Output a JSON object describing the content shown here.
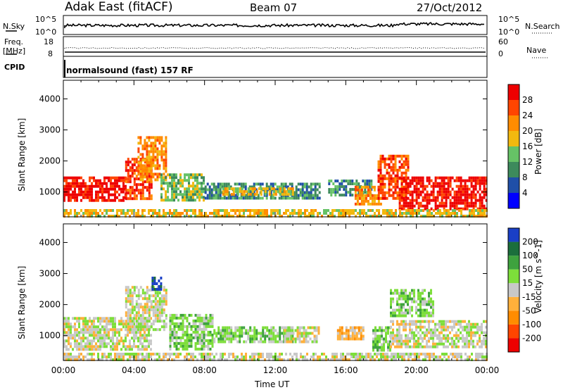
{
  "header": {
    "radar": "Adak East (fitACF)",
    "beam": "Beam 07",
    "date": "27/Oct/2012"
  },
  "nsky_panel": {
    "left_label": "N.Sky",
    "left_ticks": [
      "10^5",
      "10^0"
    ],
    "right_label": "N.Search",
    "right_ticks": [
      "10^5",
      "10^0"
    ]
  },
  "freq_panel": {
    "left_label_1": "Freq.",
    "left_label_2": "[MHz]",
    "left_ticks": [
      "18",
      "8"
    ],
    "right_label": "Nave",
    "right_ticks": [
      "60",
      "0"
    ]
  },
  "cpid": {
    "label": "CPID",
    "text": "normalsound (fast) 157 RF"
  },
  "colors": {
    "power": [
      "#0000ff",
      "#1f4fa8",
      "#3d8a5c",
      "#66c266",
      "#f2b90f",
      "#ff8c00",
      "#ff4500",
      "#ee0000"
    ],
    "velocity": [
      "#ee0000",
      "#ff4500",
      "#ff8c00",
      "#ffb03b",
      "#c8c8c8",
      "#7dde3a",
      "#3ea23e",
      "#1b6e3c",
      "#1a3fc6"
    ],
    "ground": "#c8c8c8"
  },
  "chart_data": [
    {
      "type": "heatmap",
      "name": "power",
      "xlabel": "",
      "ylabel": "Slant Range [km]",
      "xlim": [
        0,
        24
      ],
      "ylim": [
        200,
        4600
      ],
      "yticks": [
        "1000",
        "2000",
        "3000",
        "4000"
      ],
      "colorbar_label": "Power [dB]",
      "colorbar_ticks": [
        "4",
        "8",
        "12",
        "16",
        "20",
        "24",
        "28"
      ],
      "regions": [
        {
          "t0": 0.0,
          "t1": 3.5,
          "r0": 700,
          "r1": 1500,
          "level": 7
        },
        {
          "t0": 3.5,
          "t1": 5.0,
          "r0": 800,
          "r1": 2100,
          "level": 6
        },
        {
          "t0": 4.2,
          "t1": 5.8,
          "r0": 1400,
          "r1": 2800,
          "level": 5
        },
        {
          "t0": 5.5,
          "t1": 8.0,
          "r0": 700,
          "r1": 1600,
          "level": 3
        },
        {
          "t0": 8.0,
          "t1": 14.5,
          "r0": 800,
          "r1": 1300,
          "level": 2
        },
        {
          "t0": 9.0,
          "t1": 13.0,
          "r0": 900,
          "r1": 1150,
          "level": 4
        },
        {
          "t0": 15.0,
          "t1": 17.5,
          "r0": 900,
          "r1": 1400,
          "level": 2
        },
        {
          "t0": 16.5,
          "t1": 18.0,
          "r0": 600,
          "r1": 1200,
          "level": 5
        },
        {
          "t0": 17.8,
          "t1": 19.5,
          "r0": 800,
          "r1": 2200,
          "level": 6
        },
        {
          "t0": 19.0,
          "t1": 24.0,
          "r0": 500,
          "r1": 1500,
          "level": 7
        },
        {
          "t0": 0.0,
          "t1": 24.0,
          "r0": 250,
          "r1": 450,
          "level": 4
        }
      ]
    },
    {
      "type": "heatmap",
      "name": "velocity",
      "xlabel": "Time UT",
      "ylabel": "Slant Range [km]",
      "xlim": [
        0,
        24
      ],
      "ylim": [
        200,
        4600
      ],
      "xticks": [
        "00:00",
        "04:00",
        "08:00",
        "12:00",
        "16:00",
        "20:00",
        "00:00"
      ],
      "yticks": [
        "1000",
        "2000",
        "3000",
        "4000"
      ],
      "colorbar_label": "Velocity [m s^-1]",
      "colorbar_ticks": [
        "200",
        "100",
        "50",
        "15",
        "-15",
        "-50",
        "-100",
        "-200"
      ],
      "regions": [
        {
          "t0": 0.0,
          "t1": 5.0,
          "r0": 600,
          "r1": 1600,
          "level": 4
        },
        {
          "t0": 3.5,
          "t1": 5.8,
          "r0": 1200,
          "r1": 2600,
          "level": 4
        },
        {
          "t0": 5.0,
          "t1": 5.5,
          "r0": 2500,
          "r1": 2900,
          "level": 8
        },
        {
          "t0": 6.0,
          "t1": 8.5,
          "r0": 600,
          "r1": 1700,
          "level": 5
        },
        {
          "t0": 8.5,
          "t1": 13.0,
          "r0": 800,
          "r1": 1300,
          "level": 5
        },
        {
          "t0": 12.5,
          "t1": 14.5,
          "r0": 800,
          "r1": 1300,
          "level": 4
        },
        {
          "t0": 15.5,
          "t1": 17.0,
          "r0": 900,
          "r1": 1300,
          "level": 3
        },
        {
          "t0": 17.5,
          "t1": 18.5,
          "r0": 500,
          "r1": 1300,
          "level": 5
        },
        {
          "t0": 18.5,
          "t1": 24.0,
          "r0": 600,
          "r1": 1500,
          "level": 4
        },
        {
          "t0": 18.5,
          "t1": 21.0,
          "r0": 1600,
          "r1": 2500,
          "level": 5
        },
        {
          "t0": 0.0,
          "t1": 24.0,
          "r0": 250,
          "r1": 450,
          "level": 4
        }
      ]
    }
  ]
}
